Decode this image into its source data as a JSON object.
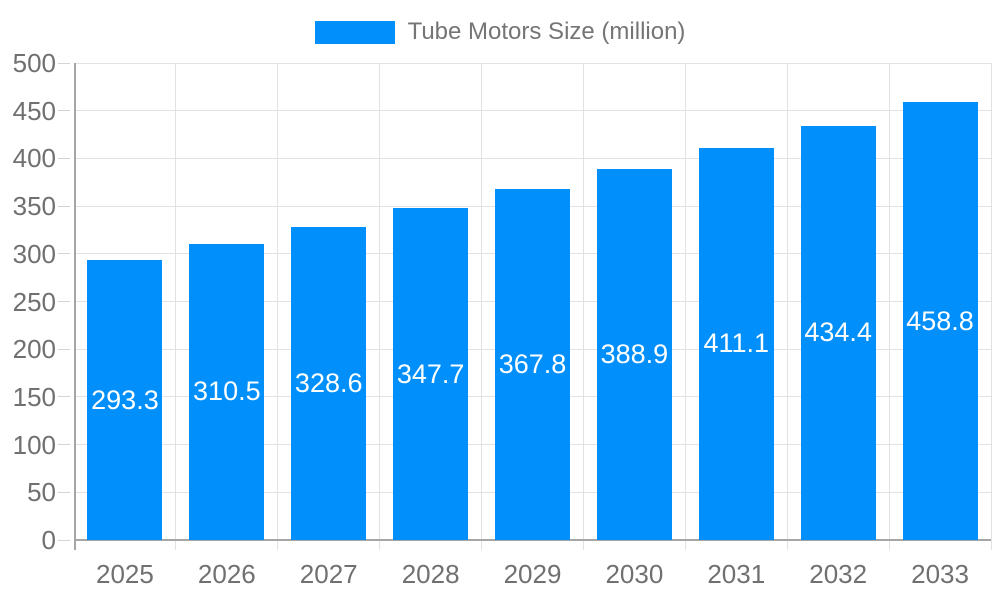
{
  "legend": {
    "label": "Tube Motors Size (million)"
  },
  "chart_data": {
    "type": "bar",
    "title": "Tube Motors Size (million)",
    "series_name": "Tube Motors Size (million)",
    "categories": [
      "2025",
      "2026",
      "2027",
      "2028",
      "2029",
      "2030",
      "2031",
      "2032",
      "2033"
    ],
    "values": [
      293.3,
      310.5,
      328.6,
      347.7,
      367.8,
      388.9,
      411.1,
      434.4,
      458.8
    ],
    "data_labels_shown": true,
    "xlabel": "",
    "ylabel": "",
    "ylim": [
      0,
      500
    ],
    "ytick_step": 50,
    "ytick_labels": [
      "0",
      "50",
      "100",
      "150",
      "200",
      "250",
      "300",
      "350",
      "400",
      "450",
      "500"
    ],
    "grid": true,
    "legend_position": "top",
    "colors": {
      "bar": "#008FFB",
      "value_label": "#ffffff",
      "axis_label": "#707070",
      "legend_text": "#757575",
      "gridline": "#e2e2e2",
      "axis_line": "#a6a6a6",
      "tick": "#d4d4d4",
      "background": "#ffffff"
    }
  }
}
